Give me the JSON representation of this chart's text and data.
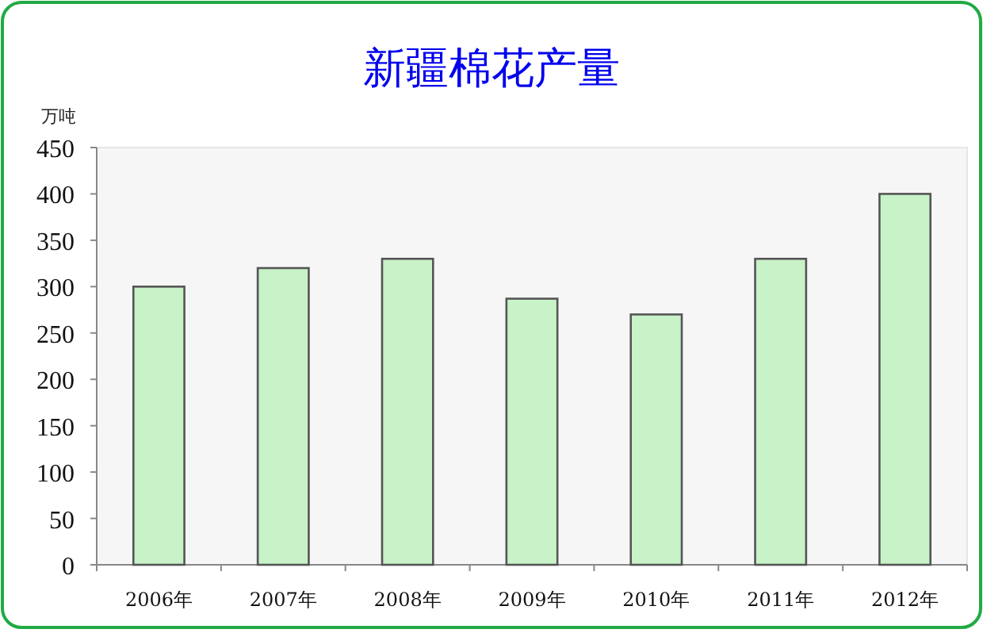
{
  "chart_data": {
    "type": "bar",
    "title": "新疆棉花产量",
    "ylabel": "万吨",
    "categories": [
      "2006年",
      "2007年",
      "2008年",
      "2009年",
      "2010年",
      "2011年",
      "2012年"
    ],
    "values": [
      300,
      320,
      330,
      287,
      270,
      330,
      400
    ],
    "color": "#c8f2c8",
    "ylim": [
      0,
      450
    ],
    "yticks": [
      0,
      50,
      100,
      150,
      200,
      250,
      300,
      350,
      400,
      450
    ],
    "grid": false
  }
}
